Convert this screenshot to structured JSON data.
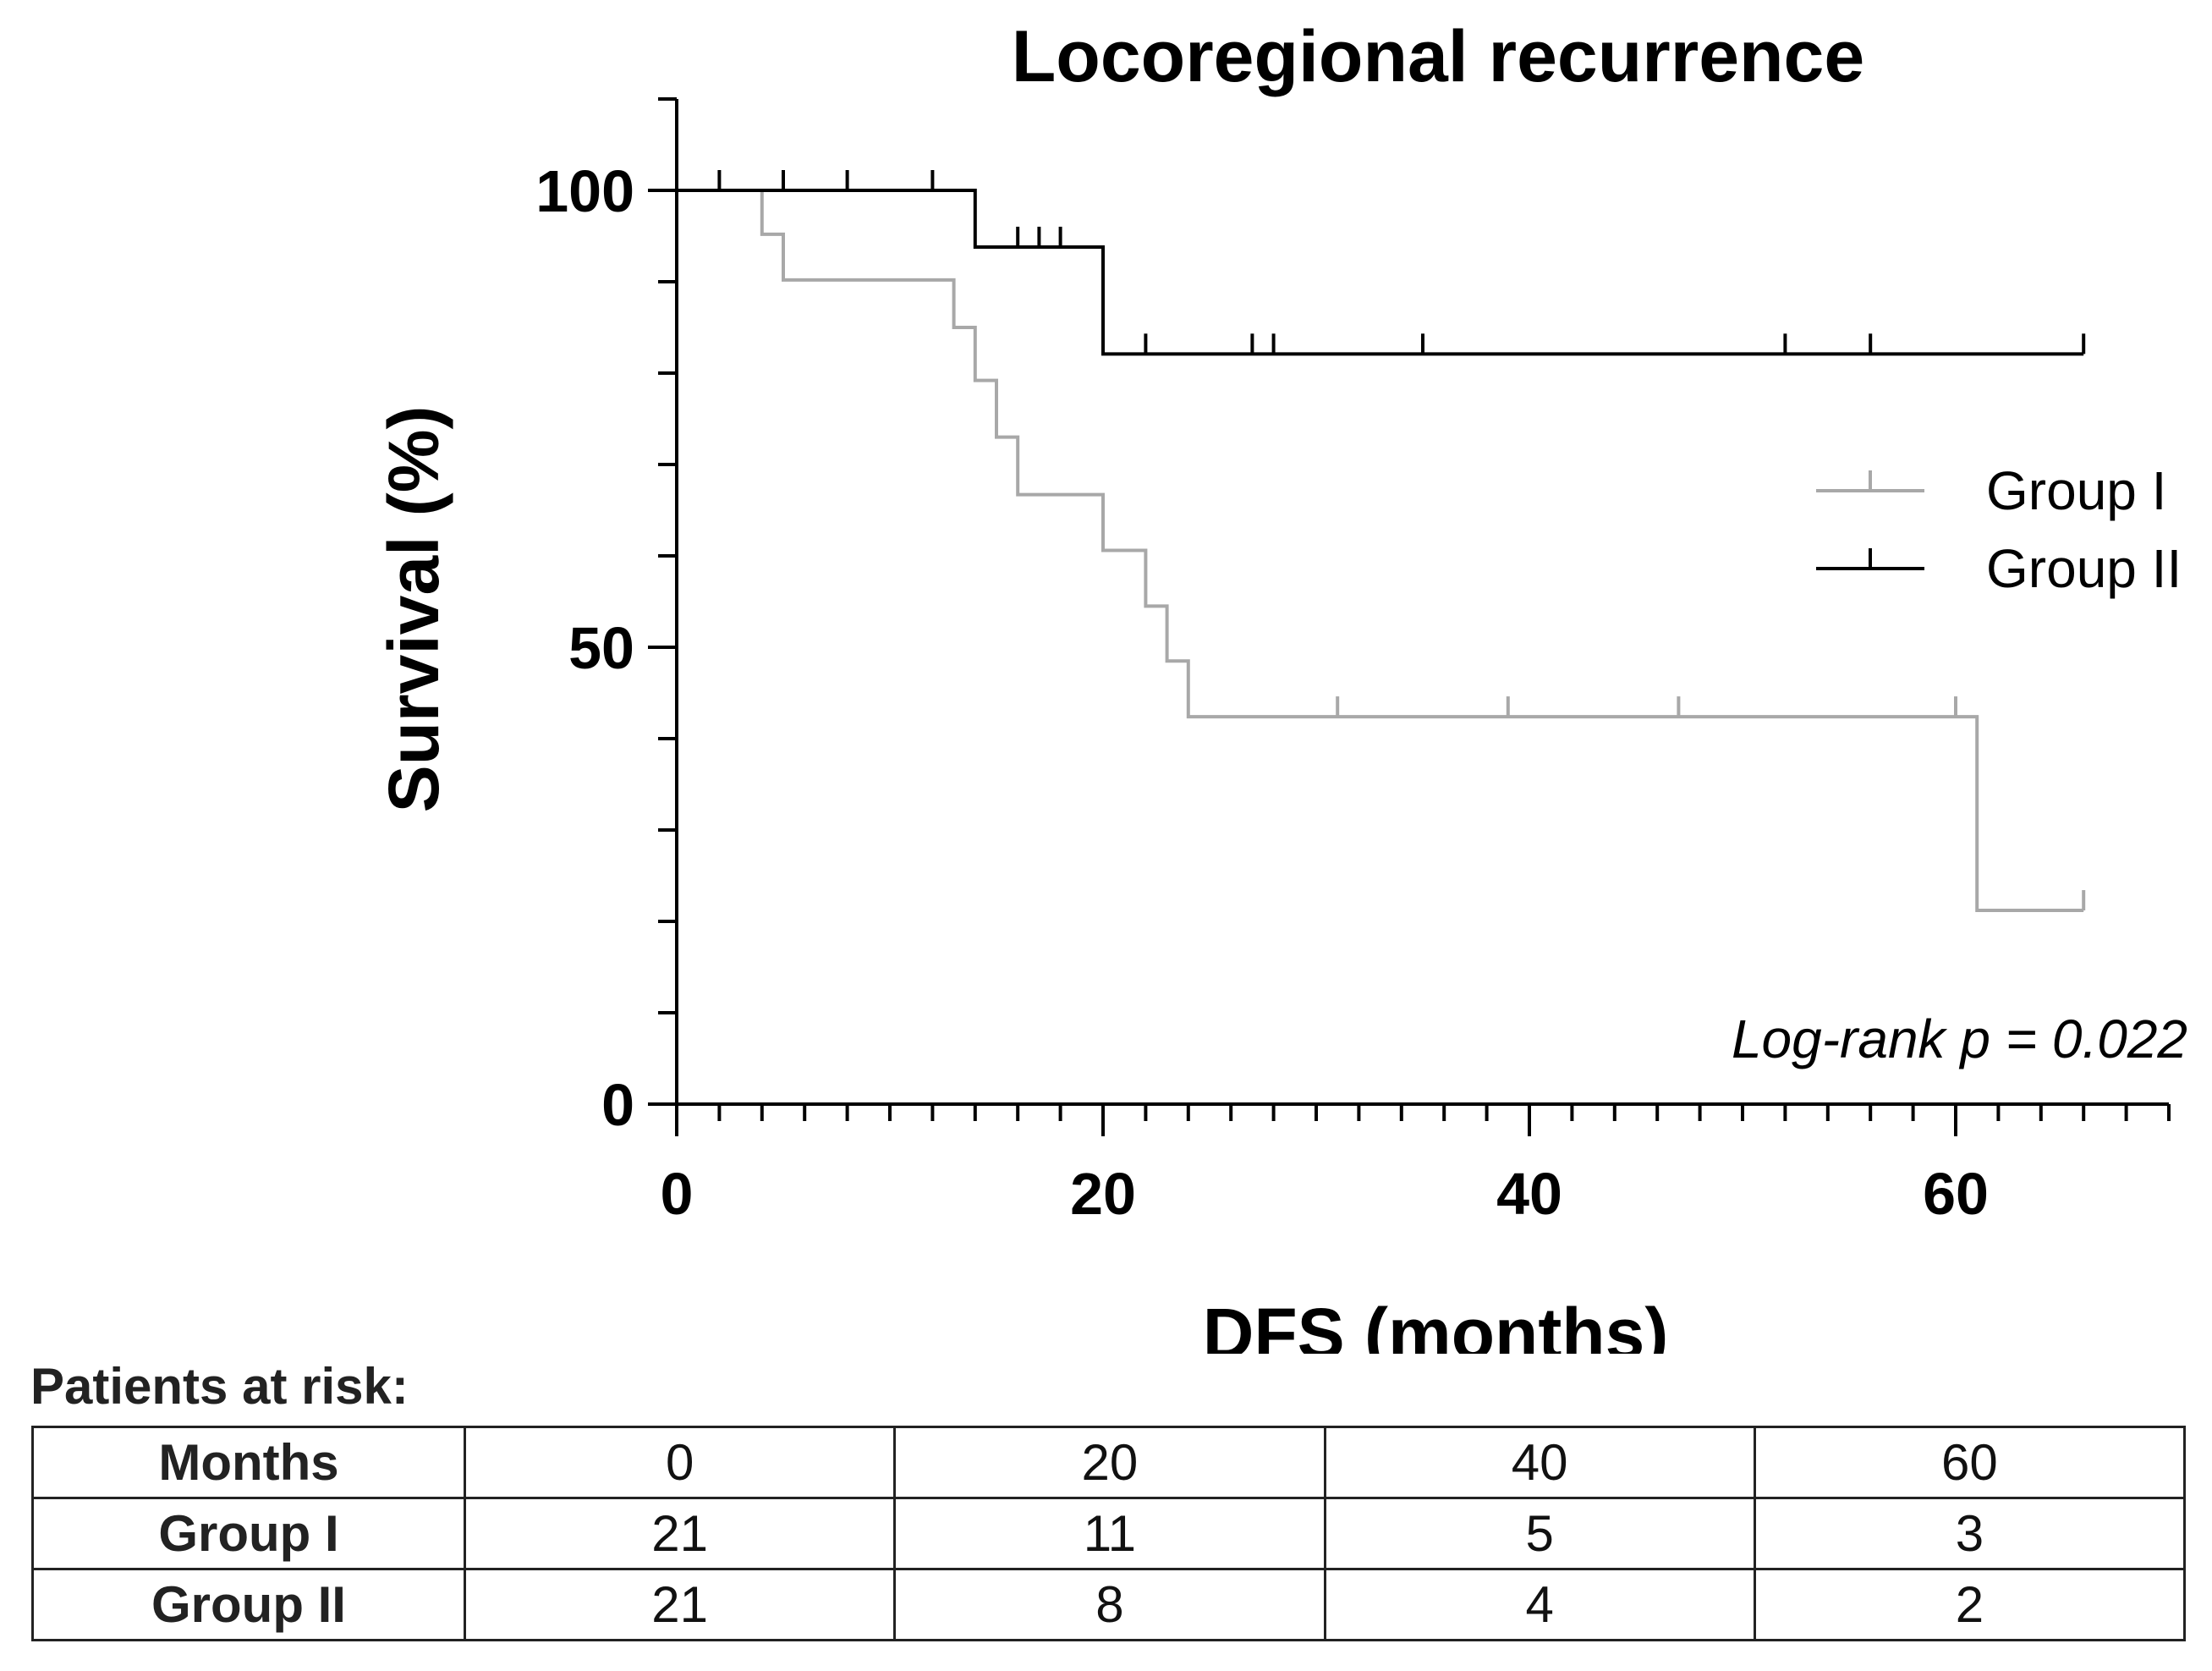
{
  "chart_data": {
    "type": "kaplan-meier",
    "title": "Locoregional recurrence",
    "xlabel": "DFS (months)",
    "ylabel": "Survival (%)",
    "xlim": [
      0,
      70
    ],
    "ylim": [
      0,
      110
    ],
    "xticks": [
      0,
      20,
      40,
      60
    ],
    "yticks": [
      0,
      50,
      100
    ],
    "annotation": "Log-rank p = 0.022",
    "series": [
      {
        "name": "Group I",
        "color": "#a8a8a8",
        "steps": [
          [
            0,
            100
          ],
          [
            4,
            95.2
          ],
          [
            5,
            90.2
          ],
          [
            13,
            85.0
          ],
          [
            14,
            79.2
          ],
          [
            15,
            73.0
          ],
          [
            16,
            66.7
          ],
          [
            20,
            60.6
          ],
          [
            22,
            54.5
          ],
          [
            23,
            48.5
          ],
          [
            24,
            42.4
          ],
          [
            61,
            21.2
          ],
          [
            66,
            21.2
          ]
        ],
        "censored": [
          [
            5,
            90.2
          ],
          [
            31,
            42.4
          ],
          [
            39,
            42.4
          ],
          [
            47,
            42.4
          ],
          [
            60,
            42.4
          ],
          [
            66,
            21.2
          ]
        ]
      },
      {
        "name": "Group II",
        "color": "#000000",
        "steps": [
          [
            0,
            100
          ],
          [
            14,
            93.8
          ],
          [
            20,
            82.1
          ],
          [
            66,
            82.1
          ]
        ],
        "censored": [
          [
            2,
            100
          ],
          [
            5,
            100
          ],
          [
            8,
            100
          ],
          [
            12,
            100
          ],
          [
            16,
            93.8
          ],
          [
            17,
            93.8
          ],
          [
            18,
            93.8
          ],
          [
            22,
            82.1
          ],
          [
            27,
            82.1
          ],
          [
            28,
            82.1
          ],
          [
            35,
            82.1
          ],
          [
            52,
            82.1
          ],
          [
            56,
            82.1
          ],
          [
            66,
            82.1
          ]
        ]
      }
    ]
  },
  "risk_table": {
    "title": "Patients at risk:",
    "header_label": "Months",
    "months": [
      "0",
      "20",
      "40",
      "60"
    ],
    "rows": [
      {
        "label": "Group I",
        "values": [
          "21",
          "11",
          "5",
          "3"
        ]
      },
      {
        "label": "Group II",
        "values": [
          "21",
          "8",
          "4",
          "2"
        ]
      }
    ]
  }
}
